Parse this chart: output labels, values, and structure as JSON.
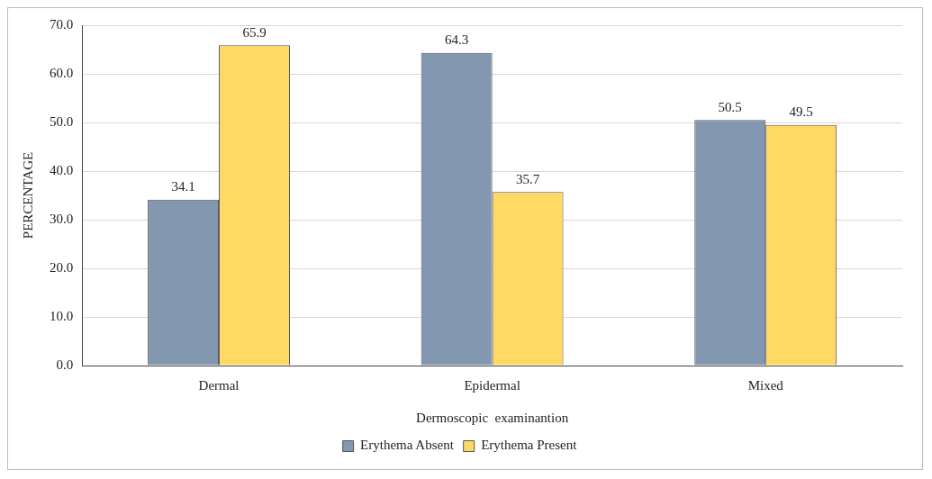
{
  "chart_data": {
    "type": "bar",
    "xlabel": "Dermoscopic  examinantion",
    "ylabel": "PERCENTAGE",
    "categories": [
      "Dermal",
      "Epidermal",
      "Mixed"
    ],
    "series": [
      {
        "name": "Erythema Absent",
        "color": "#8497b0",
        "values": [
          34.1,
          64.3,
          50.5
        ]
      },
      {
        "name": "Erythema Present",
        "color": "#ffd966",
        "values": [
          65.9,
          35.7,
          49.5
        ]
      }
    ],
    "ylim": [
      0,
      70
    ],
    "yticks": [
      {
        "value": 0,
        "label": "0.0"
      },
      {
        "value": 10,
        "label": "10.0"
      },
      {
        "value": 20,
        "label": "20.0"
      },
      {
        "value": 30,
        "label": "30.0"
      },
      {
        "value": 40,
        "label": "40.0"
      },
      {
        "value": 50,
        "label": "50.0"
      },
      {
        "value": 60,
        "label": "60.0"
      },
      {
        "value": 70,
        "label": "70.0"
      }
    ],
    "grid": "y",
    "legend": "bottom",
    "data_labels": true
  }
}
